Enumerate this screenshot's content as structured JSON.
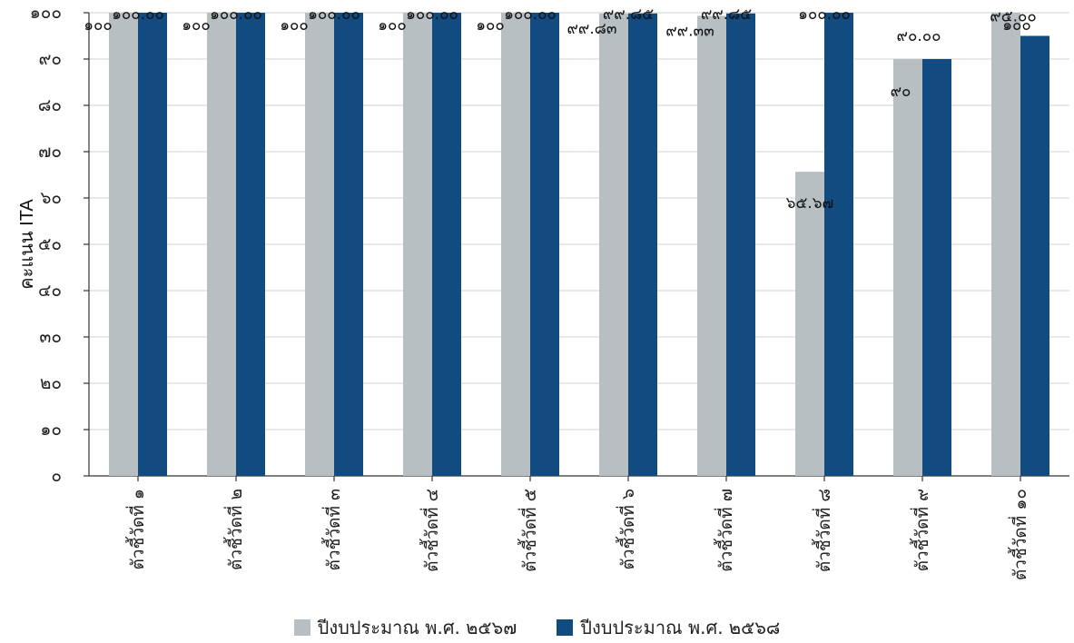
{
  "chart_data": {
    "type": "bar",
    "ylabel": "คะแนน ITA",
    "ylim": [
      0,
      100
    ],
    "yticks": [
      "๐",
      "๑๐",
      "๒๐",
      "๓๐",
      "๔๐",
      "๕๐",
      "๖๐",
      "๗๐",
      "๘๐",
      "๙๐",
      "๑๐๐"
    ],
    "grid": true,
    "legend_position": "bottom",
    "categories": [
      "ตัวชี้วัดที่ ๑",
      "ตัวชี้วัดที่ ๒",
      "ตัวชี้วัดที่ ๓",
      "ตัวชี้วัดที่ ๔",
      "ตัวชี้วัดที่ ๕",
      "ตัวชี้วัดที่ ๖",
      "ตัวชี้วัดที่ ๗",
      "ตัวชี้วัดที่ ๘",
      "ตัวชี้วัดที่ ๙",
      "ตัวชี้วัดที่ ๑๐"
    ],
    "series": [
      {
        "name": "ปีงบประมาณ พ.ศ. ๒๕๖๗",
        "color": "#b8bfc3",
        "values": [
          100,
          100,
          100,
          100,
          100,
          99.83,
          99.33,
          65.67,
          90,
          100
        ],
        "labels": [
          "๑๐๐",
          "๑๐๐",
          "๑๐๐",
          "๑๐๐",
          "๑๐๐",
          "๙๙.๘๓",
          "๙๙.๓๓",
          "๖๕.๖๗",
          "๙๐",
          "๑๐๐"
        ]
      },
      {
        "name": "ปีงบประมาณ พ.ศ. ๒๕๖๘",
        "color": "#114b80",
        "values": [
          100,
          100,
          100,
          100,
          100,
          99.85,
          99.85,
          100,
          90,
          95
        ],
        "labels": [
          "๑๐๐.๐๐",
          "๑๐๐.๐๐",
          "๑๐๐.๐๐",
          "๑๐๐.๐๐",
          "๑๐๐.๐๐",
          "๙๙.๘๕",
          "๙๙.๘๕",
          "๑๐๐.๐๐",
          "๙๐.๐๐",
          "๙๕.๐๐"
        ]
      }
    ]
  }
}
